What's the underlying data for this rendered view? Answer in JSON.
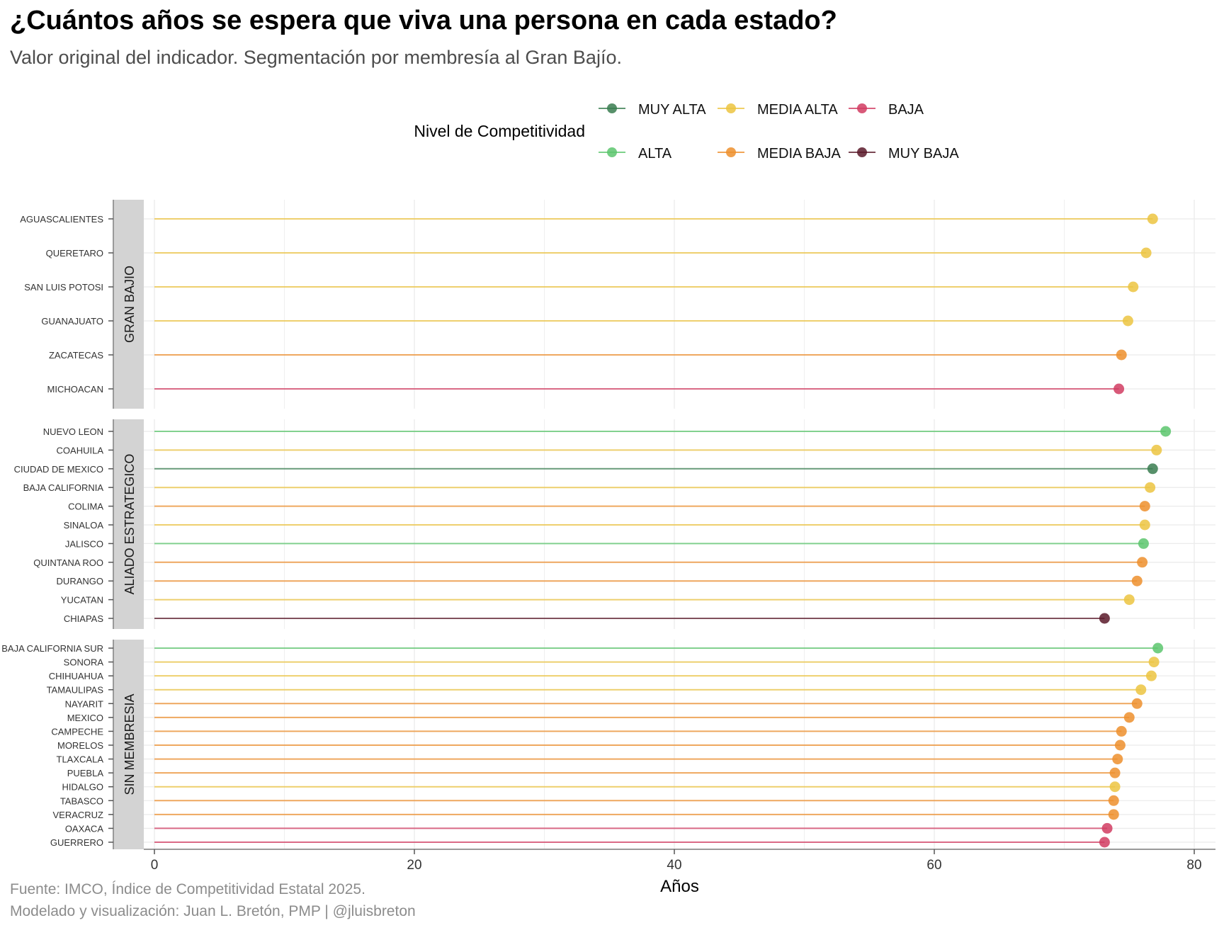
{
  "title": "¿Cuántos años se espera que viva una persona en cada estado?",
  "subtitle": "Valor original del indicador. Segmentación por membresía al Gran Bajío.",
  "caption_line1": "Fuente: IMCO, Índice de Competitividad Estatal 2025.",
  "caption_line2": "Modelado y visualización: Juan L. Bretón, PMP | @jluisbreton",
  "chart_data": {
    "type": "lollipop",
    "xlabel": "Años",
    "xlim": [
      -1.5,
      82
    ],
    "xticks": [
      0,
      20,
      40,
      60,
      80
    ],
    "grid": true,
    "legend": {
      "title": "Nivel de Competitividad",
      "position": "top",
      "items": [
        {
          "label": "MUY ALTA",
          "color": "#3a7d50"
        },
        {
          "label": "ALTA",
          "color": "#5cc66d"
        },
        {
          "label": "MEDIA ALTA",
          "color": "#ecc441"
        },
        {
          "label": "MEDIA BAJA",
          "color": "#ed8f2d"
        },
        {
          "label": "BAJA",
          "color": "#d13c61"
        },
        {
          "label": "MUY BAJA",
          "color": "#5a1a2a"
        }
      ]
    },
    "facets": [
      {
        "label": "GRAN BAJIO",
        "points": [
          {
            "state": "AGUASCALIENTES",
            "value": 76.8,
            "level": "MEDIA ALTA"
          },
          {
            "state": "QUERETARO",
            "value": 76.3,
            "level": "MEDIA ALTA"
          },
          {
            "state": "SAN LUIS POTOSI",
            "value": 75.3,
            "level": "MEDIA ALTA"
          },
          {
            "state": "GUANAJUATO",
            "value": 74.9,
            "level": "MEDIA ALTA"
          },
          {
            "state": "ZACATECAS",
            "value": 74.4,
            "level": "MEDIA BAJA"
          },
          {
            "state": "MICHOACAN",
            "value": 74.2,
            "level": "BAJA"
          }
        ]
      },
      {
        "label": "ALIADO ESTRATEGICO",
        "points": [
          {
            "state": "NUEVO LEON",
            "value": 77.8,
            "level": "ALTA"
          },
          {
            "state": "COAHUILA",
            "value": 77.1,
            "level": "MEDIA ALTA"
          },
          {
            "state": "CIUDAD DE MEXICO",
            "value": 76.8,
            "level": "MUY ALTA"
          },
          {
            "state": "BAJA CALIFORNIA",
            "value": 76.6,
            "level": "MEDIA ALTA"
          },
          {
            "state": "COLIMA",
            "value": 76.2,
            "level": "MEDIA BAJA"
          },
          {
            "state": "SINALOA",
            "value": 76.2,
            "level": "MEDIA ALTA"
          },
          {
            "state": "JALISCO",
            "value": 76.1,
            "level": "ALTA"
          },
          {
            "state": "QUINTANA ROO",
            "value": 76.0,
            "level": "MEDIA BAJA"
          },
          {
            "state": "DURANGO",
            "value": 75.6,
            "level": "MEDIA BAJA"
          },
          {
            "state": "YUCATAN",
            "value": 75.0,
            "level": "MEDIA ALTA"
          },
          {
            "state": "CHIAPAS",
            "value": 73.1,
            "level": "MUY BAJA"
          }
        ]
      },
      {
        "label": "SIN MEMBRESIA",
        "points": [
          {
            "state": "BAJA CALIFORNIA SUR",
            "value": 77.2,
            "level": "ALTA"
          },
          {
            "state": "SONORA",
            "value": 76.9,
            "level": "MEDIA ALTA"
          },
          {
            "state": "CHIHUAHUA",
            "value": 76.7,
            "level": "MEDIA ALTA"
          },
          {
            "state": "TAMAULIPAS",
            "value": 75.9,
            "level": "MEDIA ALTA"
          },
          {
            "state": "NAYARIT",
            "value": 75.6,
            "level": "MEDIA BAJA"
          },
          {
            "state": "MEXICO",
            "value": 75.0,
            "level": "MEDIA BAJA"
          },
          {
            "state": "CAMPECHE",
            "value": 74.4,
            "level": "MEDIA BAJA"
          },
          {
            "state": "MORELOS",
            "value": 74.3,
            "level": "MEDIA BAJA"
          },
          {
            "state": "TLAXCALA",
            "value": 74.1,
            "level": "MEDIA BAJA"
          },
          {
            "state": "PUEBLA",
            "value": 73.9,
            "level": "MEDIA BAJA"
          },
          {
            "state": "HIDALGO",
            "value": 73.9,
            "level": "MEDIA ALTA"
          },
          {
            "state": "TABASCO",
            "value": 73.8,
            "level": "MEDIA BAJA"
          },
          {
            "state": "VERACRUZ",
            "value": 73.8,
            "level": "MEDIA BAJA"
          },
          {
            "state": "OAXACA",
            "value": 73.3,
            "level": "BAJA"
          },
          {
            "state": "GUERRERO",
            "value": 73.1,
            "level": "BAJA"
          }
        ]
      }
    ]
  }
}
